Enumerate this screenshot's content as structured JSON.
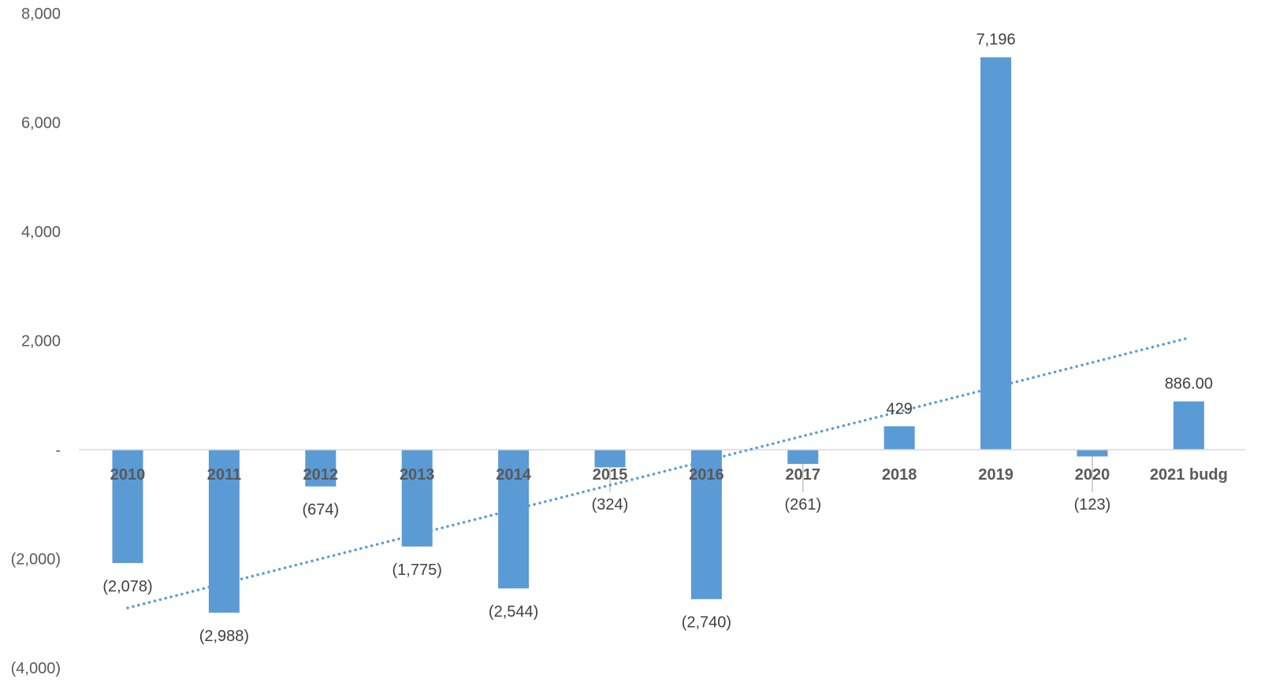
{
  "chart_data": {
    "type": "bar",
    "categories": [
      "2010",
      "2011",
      "2012",
      "2013",
      "2014",
      "2015",
      "2016",
      "2017",
      "2018",
      "2019",
      "2020",
      "2021 budg"
    ],
    "values": [
      -2078,
      -2988,
      -674,
      -1775,
      -2544,
      -324,
      -2740,
      -261,
      429,
      7196,
      -123,
      886
    ],
    "data_labels": [
      "(2,078)",
      "(2,988)",
      "(674)",
      "(1,775)",
      "(2,544)",
      "(324)",
      "(2,740)",
      "(261)",
      "429",
      "7,196",
      "(123)",
      "886.00"
    ],
    "ylim": [
      -4000,
      8000
    ],
    "yticks": [
      {
        "value": 8000,
        "label": "8,000"
      },
      {
        "value": 6000,
        "label": "6,000"
      },
      {
        "value": 4000,
        "label": "4,000"
      },
      {
        "value": 2000,
        "label": "2,000"
      },
      {
        "value": 0,
        "label": "-"
      },
      {
        "value": -2000,
        "label": "(2,000)"
      },
      {
        "value": -4000,
        "label": "(4,000)"
      }
    ],
    "trendline": {
      "type": "linear",
      "style": "dotted",
      "start_value": -2900,
      "end_value": 2050
    },
    "bar_color": "#5B9BD5",
    "trend_color": "#5B9BD5",
    "axis_color": "#D9D9D9",
    "grid": false,
    "legend": "none"
  }
}
